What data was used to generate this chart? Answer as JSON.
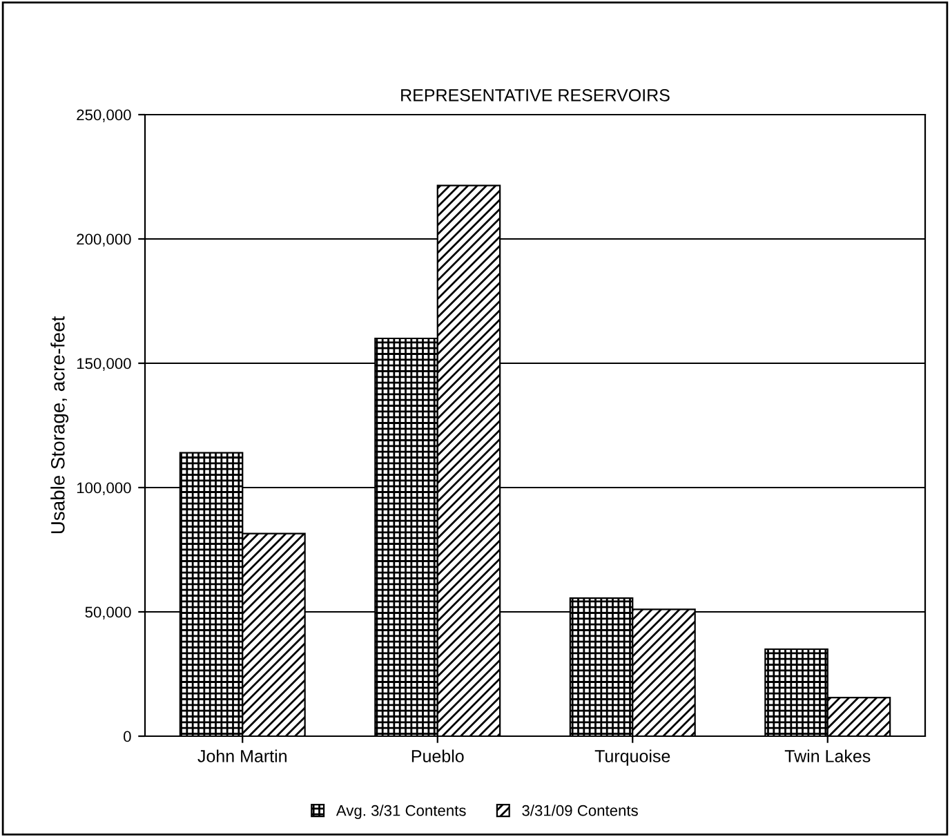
{
  "chart_data": {
    "type": "bar",
    "title": "REPRESENTATIVE RESERVOIRS",
    "ylabel": "Usable Storage, acre-feet",
    "categories": [
      "John Martin",
      "Pueblo",
      "Turquoise",
      "Twin Lakes"
    ],
    "series": [
      {
        "name": "Avg. 3/31 Contents",
        "color": "#000000",
        "values": [
          114000,
          160000,
          55500,
          35000
        ]
      },
      {
        "name": "3/31/09 Contents",
        "color": "#000000",
        "values": [
          81500,
          221500,
          51000,
          15500
        ]
      }
    ],
    "ylim": [
      0,
      250000
    ],
    "yticks": [
      {
        "value": 0,
        "label": "0"
      },
      {
        "value": 50000,
        "label": "50,000"
      },
      {
        "value": 100000,
        "label": "100,000"
      },
      {
        "value": 150000,
        "label": "150,000"
      },
      {
        "value": 200000,
        "label": "200,000"
      },
      {
        "value": 250000,
        "label": "250,000"
      }
    ],
    "grid": "y",
    "legend": "bottom"
  }
}
